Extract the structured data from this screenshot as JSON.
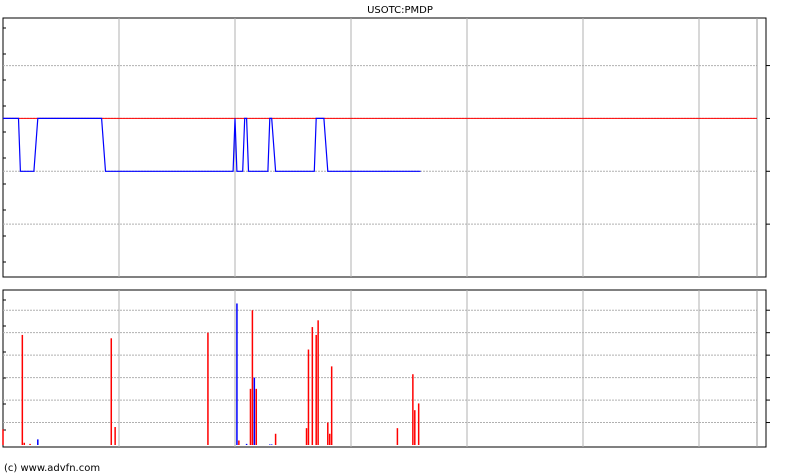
{
  "title": "USOTC:PMDP",
  "copyright": "(c) www.advfn.com",
  "colors": {
    "price_line": "#0000ff",
    "reference_line": "#ff0000",
    "volume_up": "#ff0000",
    "volume_down": "#0000ff",
    "grid": "#b0b0b0"
  },
  "chart_data": [
    {
      "type": "line",
      "title": "USOTC:PMDP",
      "x_ticks": [
        "1030",
        "1130",
        "1230",
        "1330",
        "1430",
        "1530"
      ],
      "xlim": [
        "0930",
        "1600"
      ],
      "y_ticks": [
        "0.0001",
        "0.0002",
        "0.0003",
        "0.0004"
      ],
      "ylim": [
        0,
        0.00049
      ],
      "y_axis_side": "right",
      "grid": true,
      "reference_line": 0.0003,
      "series": [
        {
          "points": [
            [
              "0930",
              0.0003
            ],
            [
              "0938",
              0.0003
            ],
            [
              "0939",
              0.0002
            ],
            [
              "0946",
              0.0002
            ],
            [
              "0948",
              0.0003
            ],
            [
              "1021",
              0.0003
            ],
            [
              "1023",
              0.0002
            ],
            [
              "1129",
              0.0002
            ],
            [
              "1130",
              0.0003
            ],
            [
              "1131",
              0.0002
            ],
            [
              "1134",
              0.0002
            ],
            [
              "1135",
              0.0003
            ],
            [
              "1136",
              0.0003
            ],
            [
              "1137",
              0.0002
            ],
            [
              "1147",
              0.0002
            ],
            [
              "1148",
              0.0003
            ],
            [
              "1149",
              0.0003
            ],
            [
              "1151",
              0.0002
            ],
            [
              "1211",
              0.0002
            ],
            [
              "1212",
              0.0003
            ],
            [
              "1216",
              0.0003
            ],
            [
              "1218",
              0.0002
            ],
            [
              "1306",
              0.0002
            ]
          ]
        }
      ]
    },
    {
      "type": "bar",
      "x_ticks": [
        "1030",
        "1130",
        "1230",
        "1330",
        "1430",
        "1530"
      ],
      "xlim": [
        "0930",
        "1600"
      ],
      "y_ticks": [
        "2M",
        "4M",
        "6M",
        "8M",
        "10M",
        "12M"
      ],
      "ylim": [
        0,
        13.8
      ],
      "y_unit": "M",
      "y_axis_side": "right",
      "grid": true,
      "bars": [
        {
          "t": "0930",
          "v": 1.4,
          "c": "up"
        },
        {
          "t": "0940",
          "v": 9.8,
          "c": "up"
        },
        {
          "t": "0941",
          "v": 0.2,
          "c": "up"
        },
        {
          "t": "0944",
          "v": 0.1,
          "c": "up"
        },
        {
          "t": "0948",
          "v": 0.5,
          "c": "down"
        },
        {
          "t": "1026",
          "v": 9.5,
          "c": "up"
        },
        {
          "t": "1028",
          "v": 1.6,
          "c": "up"
        },
        {
          "t": "1116",
          "v": 10.0,
          "c": "up"
        },
        {
          "t": "1131",
          "v": 12.6,
          "c": "down"
        },
        {
          "t": "1132",
          "v": 0.4,
          "c": "up"
        },
        {
          "t": "1136",
          "v": 0.1,
          "c": "down"
        },
        {
          "t": "1138",
          "v": 5.0,
          "c": "up"
        },
        {
          "t": "1139",
          "v": 12.0,
          "c": "up"
        },
        {
          "t": "1140",
          "v": 6.0,
          "c": "down"
        },
        {
          "t": "1141",
          "v": 5.0,
          "c": "up"
        },
        {
          "t": "1148",
          "v": 0.05,
          "c": "down"
        },
        {
          "t": "1149",
          "v": 0.05,
          "c": "down"
        },
        {
          "t": "1151",
          "v": 1.0,
          "c": "up"
        },
        {
          "t": "1207",
          "v": 1.5,
          "c": "up"
        },
        {
          "t": "1208",
          "v": 8.5,
          "c": "up"
        },
        {
          "t": "1210",
          "v": 10.5,
          "c": "up"
        },
        {
          "t": "1212",
          "v": 9.8,
          "c": "up"
        },
        {
          "t": "1213",
          "v": 11.1,
          "c": "up"
        },
        {
          "t": "1218",
          "v": 2.0,
          "c": "up"
        },
        {
          "t": "1219",
          "v": 1.0,
          "c": "up"
        },
        {
          "t": "1220",
          "v": 7.0,
          "c": "up"
        },
        {
          "t": "1254",
          "v": 1.5,
          "c": "up"
        },
        {
          "t": "1302",
          "v": 6.3,
          "c": "up"
        },
        {
          "t": "1303",
          "v": 3.1,
          "c": "up"
        },
        {
          "t": "1305",
          "v": 3.7,
          "c": "up"
        }
      ]
    }
  ]
}
